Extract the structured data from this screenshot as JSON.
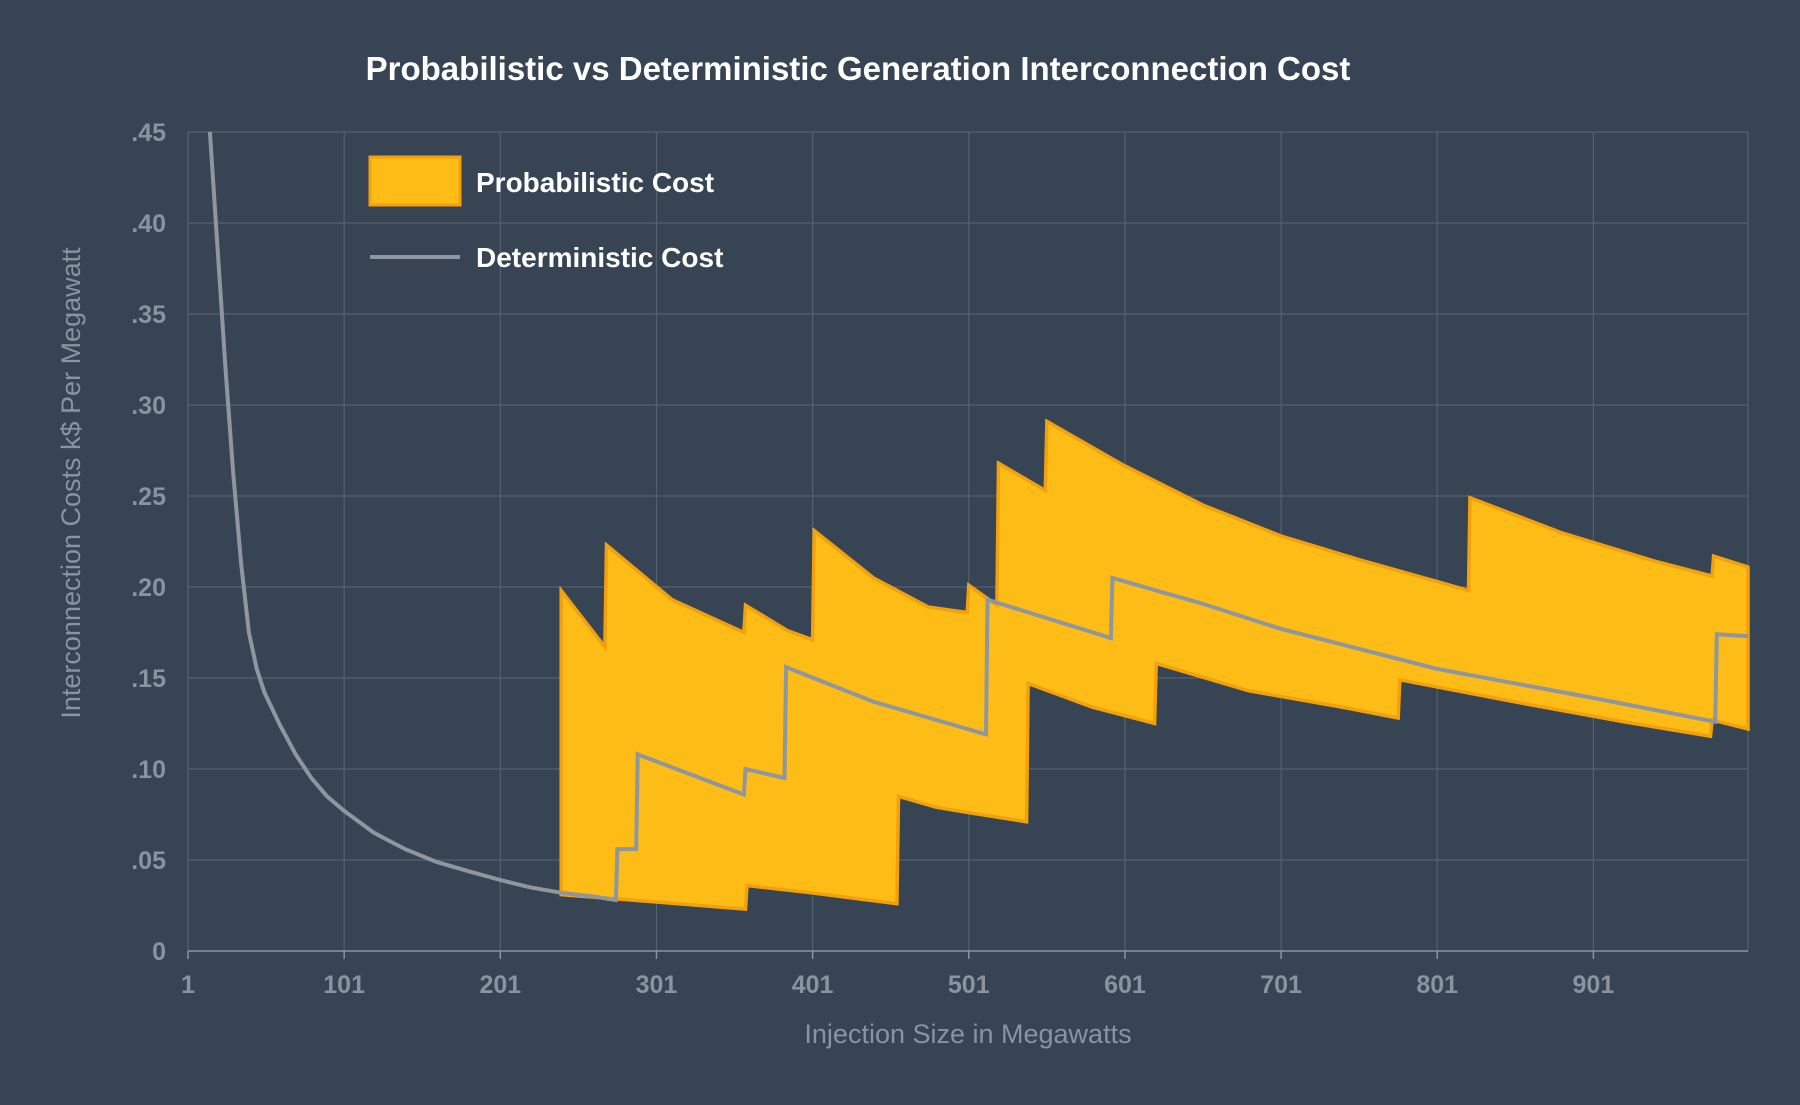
{
  "chart_data": {
    "type": "area",
    "title": "Probabilistic vs Deterministic Generation Interconnection Cost",
    "xlabel": "Injection Size in Megawatts",
    "ylabel": "Interconnection Costs k$ Per Megawatt",
    "xlim": [
      1,
      1000
    ],
    "ylim": [
      0,
      0.45
    ],
    "x_ticks": [
      1,
      101,
      201,
      301,
      401,
      501,
      601,
      701,
      801,
      901
    ],
    "x_tick_labels": [
      "1",
      "101",
      "201",
      "301",
      "401",
      "501",
      "601",
      "701",
      "801",
      "901"
    ],
    "y_ticks": [
      0,
      0.05,
      0.1,
      0.15,
      0.2,
      0.25,
      0.3,
      0.35,
      0.4,
      0.45
    ],
    "y_tick_labels": [
      "0",
      ".05",
      ".10",
      ".15",
      ".20",
      ".25",
      ".30",
      ".35",
      ".40",
      ".45"
    ],
    "grid": true,
    "legend_position": "top-left",
    "series": [
      {
        "name": "Probabilistic Cost",
        "kind": "band",
        "color": "#fdbd16",
        "edge_color": "#f2a10d",
        "upper": [
          [
            240,
            0.198
          ],
          [
            268,
            0.167
          ],
          [
            269,
            0.223
          ],
          [
            311,
            0.193
          ],
          [
            357,
            0.175
          ],
          [
            358,
            0.19
          ],
          [
            385,
            0.176
          ],
          [
            401,
            0.171
          ],
          [
            402,
            0.231
          ],
          [
            440,
            0.205
          ],
          [
            475,
            0.189
          ],
          [
            500,
            0.186
          ],
          [
            501,
            0.201
          ],
          [
            519,
            0.19
          ],
          [
            520,
            0.268
          ],
          [
            550,
            0.253
          ],
          [
            551,
            0.291
          ],
          [
            600,
            0.267
          ],
          [
            651,
            0.245
          ],
          [
            701,
            0.228
          ],
          [
            751,
            0.215
          ],
          [
            801,
            0.203
          ],
          [
            821,
            0.198
          ],
          [
            822,
            0.249
          ],
          [
            880,
            0.23
          ],
          [
            941,
            0.214
          ],
          [
            977,
            0.206
          ],
          [
            978,
            0.217
          ],
          [
            1000,
            0.211
          ]
        ],
        "lower": [
          [
            240,
            0.031
          ],
          [
            300,
            0.027
          ],
          [
            358,
            0.023
          ],
          [
            359,
            0.036
          ],
          [
            400,
            0.032
          ],
          [
            455,
            0.026
          ],
          [
            456,
            0.085
          ],
          [
            480,
            0.079
          ],
          [
            501,
            0.076
          ],
          [
            538,
            0.071
          ],
          [
            539,
            0.147
          ],
          [
            580,
            0.134
          ],
          [
            620,
            0.125
          ],
          [
            621,
            0.158
          ],
          [
            680,
            0.143
          ],
          [
            740,
            0.134
          ],
          [
            776,
            0.128
          ],
          [
            777,
            0.149
          ],
          [
            850,
            0.137
          ],
          [
            920,
            0.126
          ],
          [
            976,
            0.118
          ],
          [
            977,
            0.127
          ],
          [
            1000,
            0.122
          ]
        ]
      },
      {
        "name": "Deterministic Cost",
        "kind": "line",
        "color": "#8e969f",
        "points": [
          [
            15,
            0.45
          ],
          [
            20,
            0.385
          ],
          [
            25,
            0.32
          ],
          [
            30,
            0.262
          ],
          [
            35,
            0.213
          ],
          [
            40,
            0.175
          ],
          [
            45,
            0.155
          ],
          [
            50,
            0.142
          ],
          [
            60,
            0.124
          ],
          [
            70,
            0.108
          ],
          [
            80,
            0.095
          ],
          [
            90,
            0.085
          ],
          [
            101,
            0.077
          ],
          [
            120,
            0.065
          ],
          [
            140,
            0.056
          ],
          [
            160,
            0.049
          ],
          [
            180,
            0.044
          ],
          [
            201,
            0.039
          ],
          [
            220,
            0.035
          ],
          [
            240,
            0.032
          ],
          [
            260,
            0.03
          ],
          [
            275,
            0.028
          ],
          [
            276,
            0.056
          ],
          [
            288,
            0.056
          ],
          [
            289,
            0.108
          ],
          [
            357,
            0.086
          ],
          [
            358,
            0.1
          ],
          [
            383,
            0.095
          ],
          [
            384,
            0.156
          ],
          [
            440,
            0.137
          ],
          [
            512,
            0.119
          ],
          [
            513,
            0.193
          ],
          [
            592,
            0.172
          ],
          [
            593,
            0.205
          ],
          [
            650,
            0.191
          ],
          [
            701,
            0.177
          ],
          [
            801,
            0.155
          ],
          [
            901,
            0.139
          ],
          [
            979,
            0.126
          ],
          [
            980,
            0.174
          ],
          [
            1000,
            0.173
          ]
        ]
      }
    ]
  }
}
